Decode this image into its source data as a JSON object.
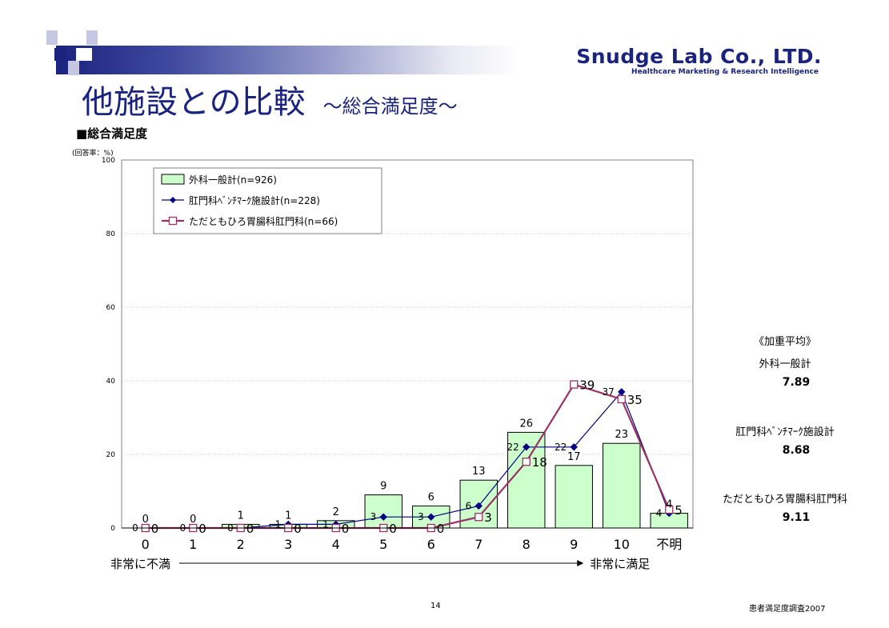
{
  "header": {
    "logo_main": "Snudge Lab Co., LTD.",
    "logo_sub": "Healthcare Marketing & Research Intelligence",
    "title": "他施設との比較",
    "title_sub": "～総合満足度～"
  },
  "section_label": "■総合満足度",
  "unit_label": "(回答率：%)",
  "colors": {
    "brand": "#1a237e",
    "bar_fill": "#ccffcc",
    "series2": "#000080",
    "series3": "#993366"
  },
  "chart_data": {
    "type": "bar",
    "categories": [
      "0",
      "1",
      "2",
      "3",
      "4",
      "5",
      "6",
      "7",
      "8",
      "9",
      "10",
      "不明"
    ],
    "ylim": [
      0,
      100
    ],
    "yticks": [
      0,
      20,
      40,
      60,
      80,
      100
    ],
    "grid": true,
    "legend_position": "top-left",
    "series": [
      {
        "name": "外科一般計(n=926)",
        "type": "bar",
        "values": [
          0,
          0,
          1,
          1,
          2,
          9,
          6,
          13,
          26,
          17,
          23,
          4
        ]
      },
      {
        "name": "肛門科ﾍﾞﾝﾁﾏｰｸ施設計(n=228)",
        "type": "line",
        "marker": "diamond",
        "values": [
          0,
          0,
          0,
          1,
          1,
          3,
          3,
          6,
          22,
          22,
          37,
          4
        ]
      },
      {
        "name": "ただともひろ胃腸科肛門科(n=66)",
        "type": "line",
        "marker": "square",
        "values": [
          0,
          0,
          0,
          0,
          0,
          0,
          0,
          3,
          18,
          39,
          35,
          5
        ]
      }
    ],
    "axis_left_label": "非常に不満",
    "axis_right_label": "非常に満足"
  },
  "weighted_avg": {
    "title": "《加重平均》",
    "items": [
      {
        "label": "外科一般計",
        "value": "7.89"
      },
      {
        "label": "肛門科ﾍﾞﾝﾁﾏｰｸ施設計",
        "value": "8.68"
      },
      {
        "label": "ただともひろ胃腸科肛門科",
        "value": "9.11"
      }
    ]
  },
  "footer": {
    "page": "14",
    "source": "患者満足度調査2007"
  }
}
